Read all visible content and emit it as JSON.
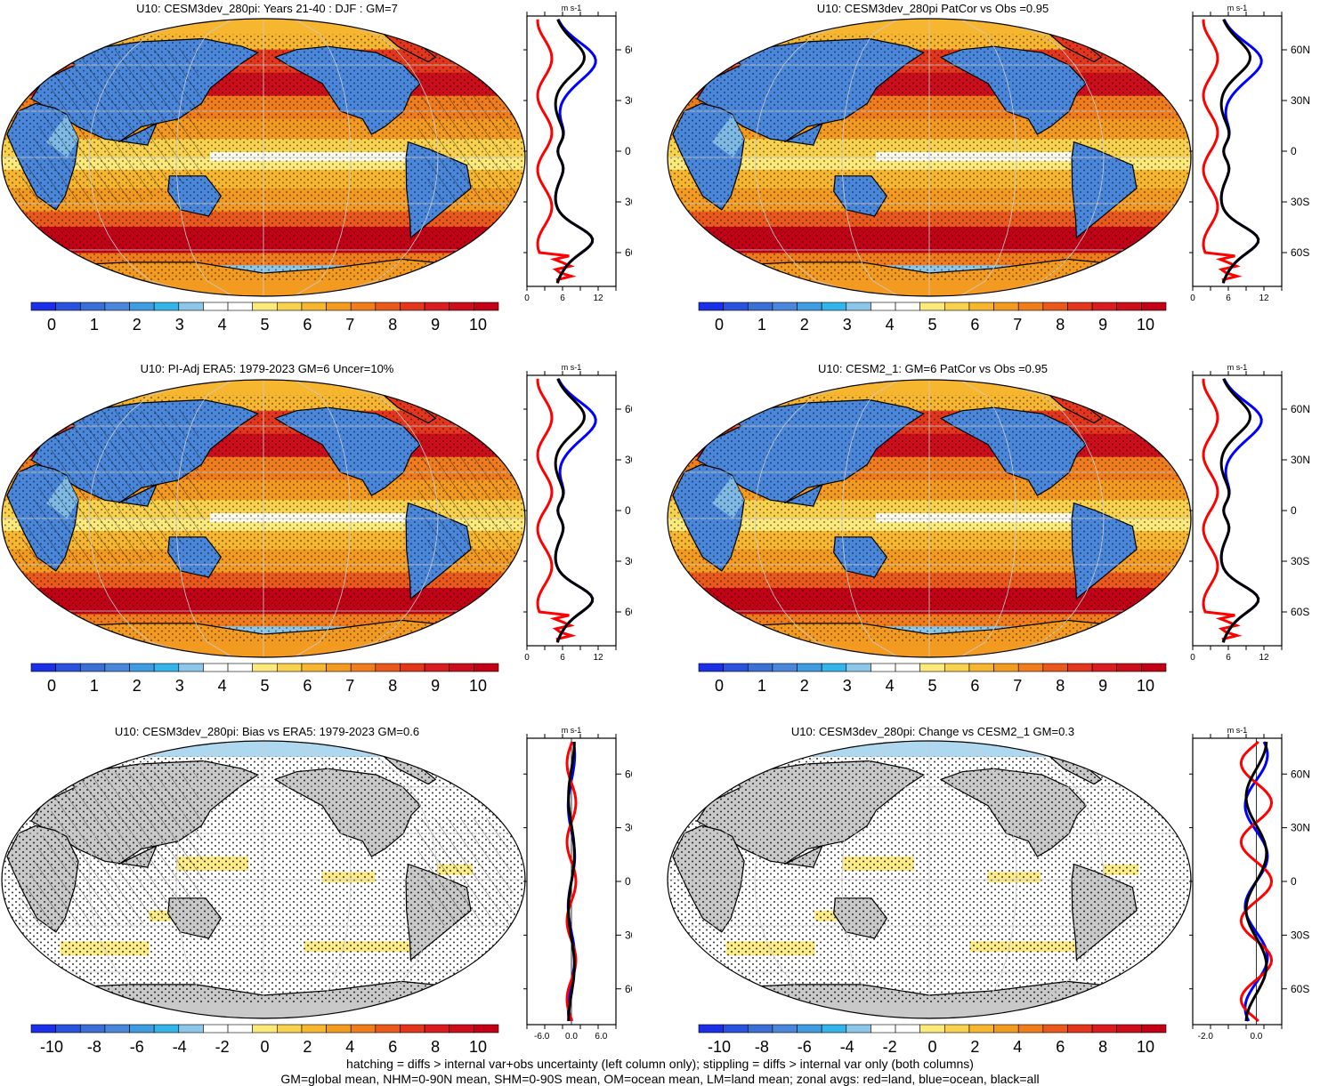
{
  "panels": [
    {
      "title": "U10: CESM3dev_280pi: Years 21-40 : DJF : GM=7",
      "type": "mean",
      "hatching": true,
      "colorbar_ticks": [
        "0",
        "1",
        "2",
        "3",
        "4",
        "5",
        "6",
        "7",
        "8",
        "9",
        "10"
      ],
      "zonal": {
        "xticks": [
          "0",
          "6",
          "12"
        ],
        "unit": "m s-1",
        "xrange": [
          0,
          15
        ]
      }
    },
    {
      "title": "U10: CESM3dev_280pi PatCor vs Obs =0.95",
      "type": "mean",
      "hatching": false,
      "colorbar_ticks": [
        "0",
        "1",
        "2",
        "3",
        "4",
        "5",
        "6",
        "7",
        "8",
        "9",
        "10"
      ],
      "zonal": {
        "xticks": [
          "0",
          "6",
          "12"
        ],
        "unit": "m s-1",
        "xrange": [
          0,
          15
        ]
      }
    },
    {
      "title": "U10: PI-Adj ERA5: 1979-2023 GM=6 Uncer=10%",
      "type": "mean",
      "hatching": true,
      "colorbar_ticks": [
        "0",
        "1",
        "2",
        "3",
        "4",
        "5",
        "6",
        "7",
        "8",
        "9",
        "10"
      ],
      "zonal": {
        "xticks": [
          "0",
          "6",
          "12"
        ],
        "unit": "m s-1",
        "xrange": [
          0,
          15
        ]
      }
    },
    {
      "title": "U10: CESM2_1: GM=6 PatCor vs Obs =0.95",
      "type": "mean",
      "hatching": false,
      "colorbar_ticks": [
        "0",
        "1",
        "2",
        "3",
        "4",
        "5",
        "6",
        "7",
        "8",
        "9",
        "10"
      ],
      "zonal": {
        "xticks": [
          "0",
          "6",
          "12"
        ],
        "unit": "m s-1",
        "xrange": [
          0,
          15
        ]
      }
    },
    {
      "title": "U10: CESM3dev_280pi: Bias vs ERA5: 1979-2023 GM=0.6",
      "type": "diff",
      "hatching": true,
      "colorbar_ticks": [
        "-10",
        "-8",
        "-6",
        "-4",
        "-2",
        "0",
        "2",
        "4",
        "6",
        "8",
        "10"
      ],
      "zonal": {
        "xticks": [
          "-6.0",
          "0.0",
          "6.0"
        ],
        "unit": "m s-1",
        "xrange": [
          -9,
          9
        ]
      }
    },
    {
      "title": "U10: CESM3dev_280pi: Change vs CESM2_1 GM=0.3",
      "type": "diff",
      "hatching": false,
      "colorbar_ticks": [
        "-10",
        "-8",
        "-6",
        "-4",
        "-2",
        "0",
        "2",
        "4",
        "6",
        "8",
        "10"
      ],
      "zonal": {
        "xticks": [
          "-2.0",
          "0.0"
        ],
        "unit": "m s-1",
        "xrange": [
          -2.5,
          1.0
        ]
      }
    }
  ],
  "lat_ticks": [
    "60N",
    "30N",
    "0",
    "30S",
    "60S"
  ],
  "colors": {
    "mean_scale": [
      "#1a2fe6",
      "#2a52dd",
      "#3c6fd6",
      "#4a86d9",
      "#3f9ce0",
      "#35b4ea",
      "#8cc7ea",
      "#ffffff",
      "#ffffff",
      "#fbe97c",
      "#f8d24e",
      "#f6b62f",
      "#f39a20",
      "#ef7d1c",
      "#e9591b",
      "#e2361d",
      "#d91c1f",
      "#cc0d1c",
      "#c20016"
    ],
    "diff_scale": [
      "#1a2fe6",
      "#2a52dd",
      "#3c6fd6",
      "#4a86d9",
      "#3f9ce0",
      "#35b4ea",
      "#8cc7ea",
      "#ffffff",
      "#ffffff",
      "#fbe97c",
      "#f8d24e",
      "#f6b62f",
      "#f39a20",
      "#ef7d1c",
      "#e9591b",
      "#e2361d",
      "#d91c1f",
      "#cc0d1c",
      "#c20016"
    ],
    "land": "#c9c9c9",
    "red_line": "#ff0000",
    "blue_line": "#0000ff",
    "black_line": "#000000"
  },
  "footnote": {
    "line1": "hatching = diffs > internal var+obs uncertainty (left column only); stippling = diffs > internal var only (both columns)",
    "line2": "GM=global mean, NHM=0-90N mean, SHM=0-90S mean, OM=ocean mean, LM=land mean; zonal avgs: red=land, blue=ocean, black=all"
  }
}
